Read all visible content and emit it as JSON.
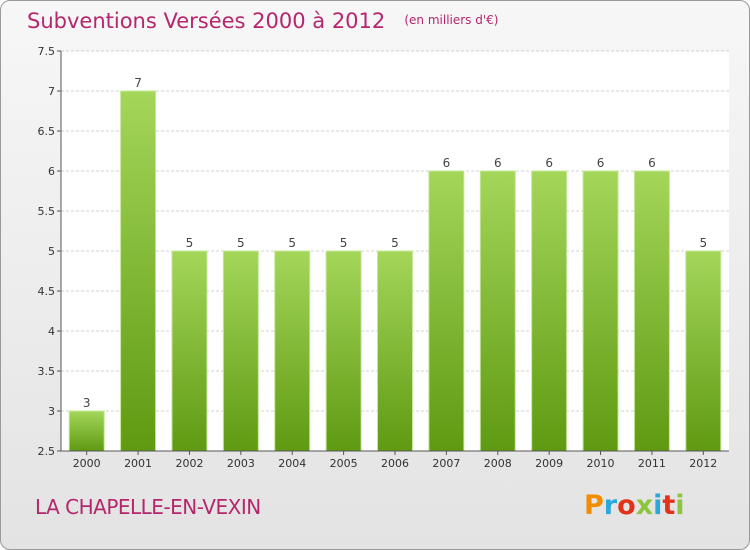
{
  "header": {
    "title": "Subventions Versées 2000 à 2012",
    "unit": "(en milliers d'€)"
  },
  "commune": "LA CHAPELLE-EN-VEXIN",
  "logo": {
    "text": "Proxiti",
    "colors": [
      "#f28c00",
      "#2aa8d8",
      "#e2331a",
      "#8cc63f",
      "#2aa8d8",
      "#e2331a",
      "#8cc63f"
    ]
  },
  "colors": {
    "title": "#b5266d",
    "bar_light": "#a4d65a",
    "bar_dark": "#5f9a12",
    "grid": "#d0d0d0"
  },
  "chart_data": {
    "type": "bar",
    "title": "Subventions Versées 2000 à 2012",
    "subtitle": "(en milliers d'€)",
    "categories": [
      "2000",
      "2001",
      "2002",
      "2003",
      "2004",
      "2005",
      "2006",
      "2007",
      "2008",
      "2009",
      "2010",
      "2011",
      "2012"
    ],
    "values": [
      3,
      7,
      5,
      5,
      5,
      5,
      5,
      6,
      6,
      6,
      6,
      6,
      5
    ],
    "data_labels": [
      "3",
      "7",
      "5",
      "5",
      "5",
      "5",
      "5",
      "6",
      "6",
      "6",
      "6",
      "6",
      "5"
    ],
    "ylim": [
      2.5,
      7.5
    ],
    "yticks": [
      2.5,
      3,
      3.5,
      4,
      4.5,
      5,
      5.5,
      6,
      6.5,
      7,
      7.5
    ],
    "ytick_labels": [
      "2.5",
      "3",
      "3.5",
      "4",
      "4.5",
      "5",
      "5.5",
      "6",
      "6.5",
      "7",
      "7.5"
    ],
    "grid": true,
    "legend": "none"
  }
}
